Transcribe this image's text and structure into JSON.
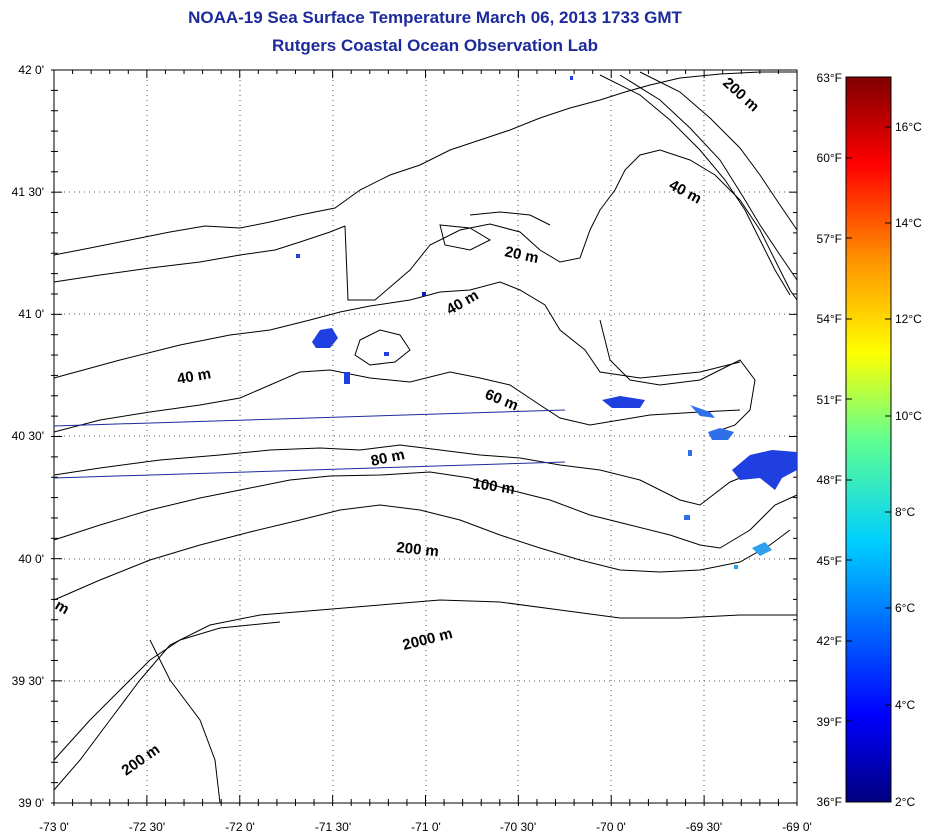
{
  "title": "NOAA-19 Sea Surface Temperature March 06, 2013 1733 GMT",
  "subtitle": "Rutgers Coastal Ocean Observation Lab",
  "map": {
    "lon_ticks": [
      "-73 0'",
      "-72 30'",
      "-72 0'",
      "-71 30'",
      "-71 0'",
      "-70 30'",
      "-70 0'",
      "-69 30'",
      "-69 0'"
    ],
    "lat_ticks": [
      "42 0'",
      "41 30'",
      "41 0'",
      "40 30'",
      "40 0'",
      "39 30'",
      "39 0'"
    ],
    "contour_labels": [
      "20 m",
      "40 m",
      "40 m",
      "40 m",
      "60 m",
      "80 m",
      "100 m",
      "200 m",
      "200 m",
      "2000 m",
      "200 m",
      "m"
    ]
  },
  "colorbar": {
    "fahrenheit": [
      "63°F",
      "60°F",
      "57°F",
      "54°F",
      "51°F",
      "48°F",
      "45°F",
      "42°F",
      "39°F",
      "36°F"
    ],
    "celsius": [
      "16°C",
      "14°C",
      "12°C",
      "10°C",
      "8°C",
      "6°C",
      "4°C",
      "2°C"
    ],
    "range_c": [
      2,
      17.2
    ]
  },
  "colors": {
    "title": "#1c2a9c",
    "cold_patch": "#1f3fe0",
    "cold_patch_dark": "#0a1fb8"
  }
}
